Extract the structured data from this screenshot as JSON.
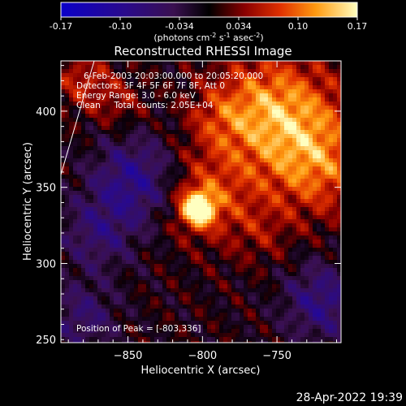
{
  "chart_data": {
    "type": "heatmap",
    "title": "Reconstructed RHESSI Image",
    "xlabel": "Heliocentric X (arcsec)",
    "ylabel": "Heliocentric Y (arcsec)",
    "xlim": [
      -895,
      -707
    ],
    "ylim": [
      248,
      433
    ],
    "xticks": [
      -850,
      -800,
      -750
    ],
    "yticks": [
      300,
      350,
      400
    ],
    "colorbar": {
      "ticks": [
        "-0.17",
        "-0.10",
        "-0.034",
        "0.034",
        "0.10",
        "0.17"
      ],
      "range": [
        -0.17,
        0.17
      ],
      "unit_text": "(photons cm",
      "unit_sup1": "-2",
      "unit_mid": " s",
      "unit_sup2": "-1",
      "unit_mid2": " asec",
      "unit_sup3": "-2",
      "unit_end": ")"
    },
    "annotations": [
      "6-Feb-2003 20:03:00.000 to 20:05:20.000",
      "Detectors: 3F 4F 5F 6F 7F 8F, Att 0",
      "Energy Range: 3.0 - 6.0 keV",
      "Clean     Total counts: 2.05E+04"
    ],
    "peak_label": "Position of Peak = [-803,336]",
    "peak": [
      -803,
      336
    ],
    "emission_blobs": [
      {
        "x": -803,
        "y": 336,
        "amp": 0.17,
        "sigma": 8
      },
      {
        "x": -795,
        "y": 345,
        "amp": 0.07,
        "sigma": 22
      },
      {
        "x": -735,
        "y": 385,
        "amp": 0.09,
        "sigma": 30
      },
      {
        "x": -760,
        "y": 405,
        "amp": 0.07,
        "sigma": 25
      },
      {
        "x": -720,
        "y": 360,
        "amp": 0.05,
        "sigma": 22
      },
      {
        "x": -880,
        "y": 420,
        "amp": 0.06,
        "sigma": 14
      },
      {
        "x": -855,
        "y": 405,
        "amp": 0.04,
        "sigma": 12
      },
      {
        "x": -845,
        "y": 355,
        "amp": -0.09,
        "sigma": 20
      },
      {
        "x": -870,
        "y": 320,
        "amp": -0.06,
        "sigma": 18
      },
      {
        "x": -720,
        "y": 275,
        "amp": -0.08,
        "sigma": 18
      },
      {
        "x": -880,
        "y": 265,
        "amp": -0.06,
        "sigma": 16
      },
      {
        "x": -790,
        "y": 395,
        "amp": 0.04,
        "sigma": 15
      },
      {
        "x": -760,
        "y": 320,
        "amp": 0.03,
        "sigma": 15
      }
    ]
  },
  "timestamp": "28-Apr-2022 19:39"
}
